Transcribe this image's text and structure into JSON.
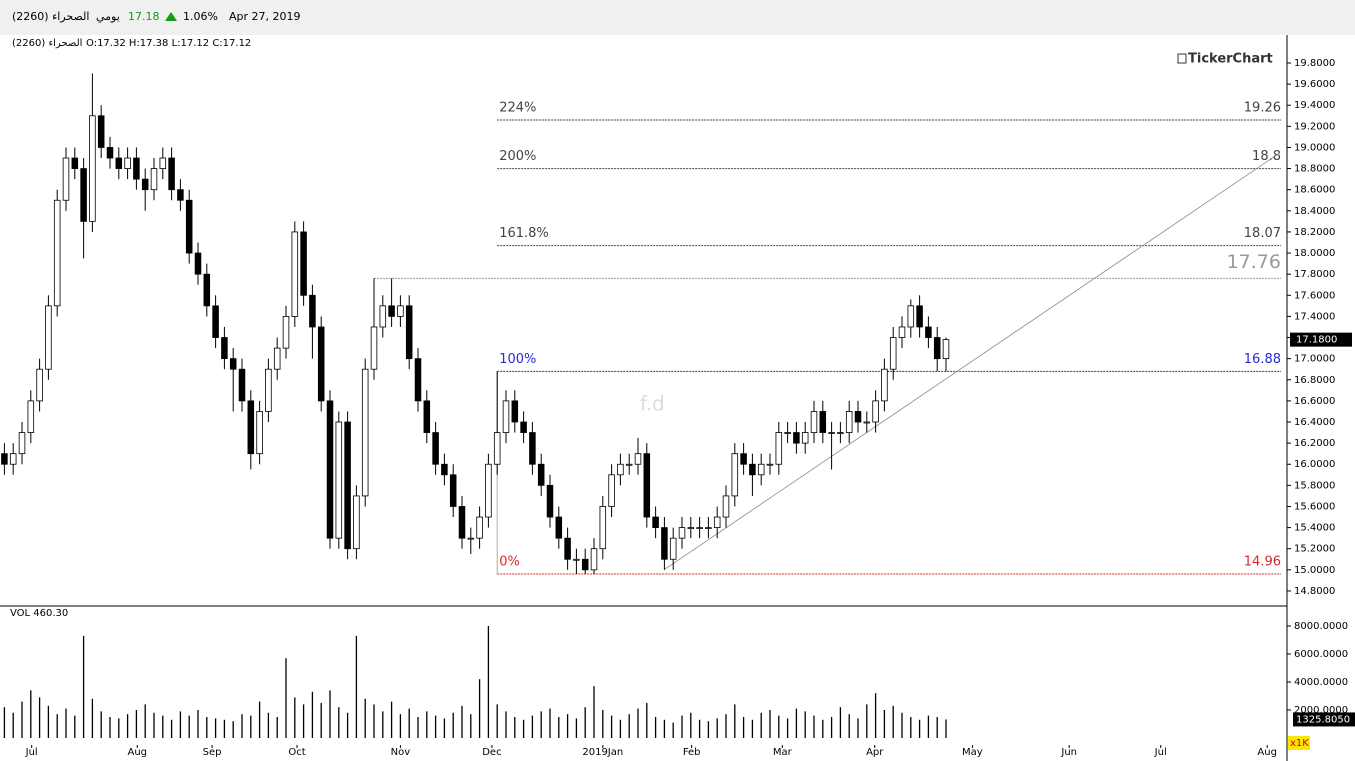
{
  "header": {
    "symbol": "الصحراء (2260)",
    "period": "يومي",
    "last": "17.18",
    "change": "1.06%",
    "date": "Apr 27, 2019"
  },
  "chart_data": {
    "type": "candlestick",
    "title": "الصحراء (2260)",
    "ohlc_text": "O:17.32 H:17.38 L:17.12 C:17.12",
    "brand": "TickerChart",
    "watermark": "f.d",
    "open": [
      16.1,
      16.0,
      16.1,
      16.3,
      16.6,
      16.9,
      17.5,
      18.5,
      18.9,
      18.8,
      18.3,
      19.3,
      19.0,
      18.9,
      18.8,
      18.9,
      18.7,
      18.6,
      18.8,
      18.9,
      18.6,
      18.5,
      18.0,
      17.8,
      17.5,
      17.2,
      17.0,
      16.9,
      16.6,
      16.1,
      16.5,
      16.9,
      17.1,
      17.4,
      18.2,
      17.6,
      17.3,
      16.6,
      15.3,
      16.4,
      15.2,
      15.7,
      16.9,
      17.3,
      17.5,
      17.4,
      17.5,
      17.0,
      16.6,
      16.3,
      16.0,
      15.9,
      15.6,
      15.3,
      15.3,
      15.5,
      16.0,
      16.3,
      16.6,
      16.4,
      16.3,
      16.0,
      15.8,
      15.5,
      15.3,
      15.1,
      15.1,
      15.0,
      15.2,
      15.6,
      15.9,
      16.0,
      16.0,
      16.1,
      15.5,
      15.4,
      15.1,
      15.3,
      15.4,
      15.4,
      15.4,
      15.4,
      15.5,
      15.7,
      16.1,
      16.0,
      15.9,
      16.0,
      16.0,
      16.3,
      16.3,
      16.2,
      16.3,
      16.5,
      16.3,
      16.3,
      16.3,
      16.5,
      16.4,
      16.4,
      16.6,
      16.9,
      17.2,
      17.3,
      17.5,
      17.3,
      17.2,
      17.0
    ],
    "high": [
      16.2,
      16.2,
      16.4,
      16.7,
      17.0,
      17.6,
      18.6,
      19.0,
      19.0,
      18.9,
      19.7,
      19.4,
      19.1,
      19.0,
      19.0,
      19.0,
      18.8,
      18.9,
      19.0,
      19.0,
      18.7,
      18.6,
      18.1,
      17.9,
      17.6,
      17.3,
      17.1,
      17.0,
      16.7,
      16.6,
      17.0,
      17.2,
      17.5,
      18.3,
      18.3,
      17.7,
      17.4,
      16.7,
      16.5,
      16.5,
      15.8,
      17.0,
      17.76,
      17.6,
      17.76,
      17.6,
      17.6,
      17.1,
      16.7,
      16.4,
      16.1,
      16.0,
      15.7,
      15.4,
      15.6,
      16.1,
      16.88,
      16.7,
      16.7,
      16.5,
      16.4,
      16.1,
      15.9,
      15.6,
      15.4,
      15.2,
      15.2,
      15.3,
      15.7,
      16.0,
      16.1,
      16.1,
      16.25,
      16.2,
      15.6,
      15.5,
      15.4,
      15.5,
      15.5,
      15.5,
      15.5,
      15.6,
      15.8,
      16.2,
      16.2,
      16.1,
      16.1,
      16.1,
      16.4,
      16.4,
      16.4,
      16.4,
      16.6,
      16.6,
      16.4,
      16.4,
      16.6,
      16.6,
      16.5,
      16.7,
      17.0,
      17.3,
      17.4,
      17.56,
      17.6,
      17.4,
      17.3,
      17.2
    ],
    "low": [
      15.9,
      15.9,
      16.0,
      16.2,
      16.5,
      16.8,
      17.4,
      18.4,
      18.7,
      17.95,
      18.2,
      18.9,
      18.8,
      18.7,
      18.7,
      18.6,
      18.4,
      18.5,
      18.7,
      18.5,
      18.4,
      17.9,
      17.7,
      17.4,
      17.1,
      16.9,
      16.5,
      16.5,
      15.95,
      16.0,
      16.4,
      16.8,
      17.0,
      17.3,
      17.5,
      17.0,
      16.5,
      15.2,
      15.2,
      15.1,
      15.1,
      15.6,
      16.8,
      17.2,
      17.3,
      17.3,
      16.9,
      16.5,
      16.2,
      15.9,
      15.8,
      15.5,
      15.2,
      15.15,
      15.2,
      15.4,
      15.9,
      16.2,
      16.3,
      16.2,
      15.9,
      15.7,
      15.4,
      15.2,
      15.0,
      14.96,
      14.96,
      14.96,
      15.1,
      15.5,
      15.8,
      15.9,
      15.9,
      15.4,
      15.3,
      15.0,
      15.0,
      15.2,
      15.3,
      15.3,
      15.3,
      15.3,
      15.4,
      15.6,
      15.9,
      15.7,
      15.8,
      15.9,
      15.9,
      16.2,
      16.1,
      16.1,
      16.2,
      16.2,
      15.95,
      16.2,
      16.2,
      16.3,
      16.3,
      16.3,
      16.5,
      16.8,
      17.1,
      17.2,
      17.2,
      17.1,
      16.88,
      16.88
    ],
    "close": [
      16.0,
      16.1,
      16.3,
      16.6,
      16.9,
      17.5,
      18.5,
      18.9,
      18.8,
      18.3,
      19.3,
      19.0,
      18.9,
      18.8,
      18.9,
      18.7,
      18.6,
      18.8,
      18.9,
      18.6,
      18.5,
      18.0,
      17.8,
      17.5,
      17.2,
      17.0,
      16.9,
      16.6,
      16.1,
      16.5,
      16.9,
      17.1,
      17.4,
      18.2,
      17.6,
      17.3,
      16.6,
      15.3,
      16.4,
      15.2,
      15.7,
      16.9,
      17.3,
      17.5,
      17.4,
      17.5,
      17.0,
      16.6,
      16.3,
      16.0,
      15.9,
      15.6,
      15.3,
      15.3,
      15.5,
      16.0,
      16.3,
      16.6,
      16.4,
      16.3,
      16.0,
      15.8,
      15.5,
      15.3,
      15.1,
      15.1,
      15.0,
      15.2,
      15.6,
      15.9,
      16.0,
      16.0,
      16.1,
      15.5,
      15.4,
      15.1,
      15.3,
      15.4,
      15.4,
      15.4,
      15.4,
      15.5,
      15.7,
      16.1,
      16.0,
      15.9,
      16.0,
      16.0,
      16.3,
      16.3,
      16.2,
      16.3,
      16.5,
      16.3,
      16.3,
      16.3,
      16.5,
      16.4,
      16.4,
      16.6,
      16.9,
      17.2,
      17.3,
      17.5,
      17.3,
      17.2,
      17.0,
      17.18
    ],
    "volume": [
      2200,
      1800,
      2600,
      3400,
      2900,
      2300,
      1700,
      2100,
      1600,
      7300,
      2800,
      1900,
      1500,
      1400,
      1700,
      2000,
      2400,
      1800,
      1600,
      1300,
      1900,
      1600,
      2000,
      1500,
      1400,
      1300,
      1200,
      1700,
      1600,
      2600,
      1800,
      1500,
      5700,
      2900,
      2400,
      3300,
      2500,
      3400,
      2200,
      1800,
      7300,
      2800,
      2400,
      1900,
      2600,
      1700,
      2100,
      1500,
      1900,
      1600,
      1400,
      1800,
      2300,
      1700,
      4200,
      8000,
      2400,
      1900,
      1500,
      1300,
      1600,
      1900,
      2100,
      1500,
      1700,
      1400,
      2200,
      3700,
      2000,
      1600,
      1300,
      1700,
      2100,
      2500,
      1500,
      1300,
      1100,
      1600,
      1800,
      1300,
      1200,
      1400,
      1700,
      2400,
      1500,
      1300,
      1800,
      2000,
      1600,
      1400,
      2100,
      1900,
      1600,
      1300,
      1500,
      2200,
      1700,
      1400,
      2400,
      3200,
      2000,
      2300,
      1800,
      1500,
      1300,
      1600,
      1500,
      1325.805
    ],
    "up_color": "#ffffff",
    "down_color": "#000000",
    "volume_label": "VOL  460.30",
    "volume_unit": "x1K",
    "last_price": {
      "value": 17.18,
      "label": "17.1800"
    },
    "last_volume": {
      "value": 1325.805,
      "label": "1325.8050"
    },
    "xlim": [
      -0.5,
      145.75
    ],
    "xticks": [
      {
        "value": 3.1,
        "label": "Jul"
      },
      {
        "value": 15.1,
        "label": "Aug"
      },
      {
        "value": 23.6,
        "label": "Sep"
      },
      {
        "value": 33.25,
        "label": "Oct"
      },
      {
        "value": 45,
        "label": "Nov"
      },
      {
        "value": 55.4,
        "label": "Dec"
      },
      {
        "value": 68,
        "label": "2019Jan"
      },
      {
        "value": 78.1,
        "label": "Feb"
      },
      {
        "value": 88.4,
        "label": "Mar"
      },
      {
        "value": 98.9,
        "label": "Apr"
      },
      {
        "value": 110,
        "label": "May"
      },
      {
        "value": 121,
        "label": "Jun"
      },
      {
        "value": 131.4,
        "label": "Jul"
      },
      {
        "value": 143.5,
        "label": "Aug"
      }
    ],
    "ylim": [
      14.667,
      20.065
    ],
    "yticks": [
      {
        "value": 14.8,
        "label": "14.8000"
      },
      {
        "value": 15.0,
        "label": "15.0000"
      },
      {
        "value": 15.2,
        "label": "15.2000"
      },
      {
        "value": 15.4,
        "label": "15.4000"
      },
      {
        "value": 15.6,
        "label": "15.6000"
      },
      {
        "value": 15.8,
        "label": "15.8000"
      },
      {
        "value": 16.0,
        "label": "16.0000"
      },
      {
        "value": 16.2,
        "label": "16.2000"
      },
      {
        "value": 16.4,
        "label": "16.4000"
      },
      {
        "value": 16.6,
        "label": "16.6000"
      },
      {
        "value": 16.8,
        "label": "16.8000"
      },
      {
        "value": 17.0,
        "label": "17.0000"
      },
      {
        "value": 17.2,
        "label": "17.2000"
      },
      {
        "value": 17.4,
        "label": "17.4000"
      },
      {
        "value": 17.6,
        "label": "17.6000"
      },
      {
        "value": 17.8,
        "label": "17.8000"
      },
      {
        "value": 18.0,
        "label": "18.0000"
      },
      {
        "value": 18.2,
        "label": "18.2000"
      },
      {
        "value": 18.4,
        "label": "18.4000"
      },
      {
        "value": 18.6,
        "label": "18.6000"
      },
      {
        "value": 18.8,
        "label": "18.8000"
      },
      {
        "value": 19.0,
        "label": "19.0000"
      },
      {
        "value": 19.2,
        "label": "19.2000"
      },
      {
        "value": 19.4,
        "label": "19.4000"
      },
      {
        "value": 19.6,
        "label": "19.6000"
      },
      {
        "value": 19.8,
        "label": "19.8000"
      }
    ],
    "vol_ylim": [
      -500,
      9357
    ],
    "vol_yticks": [
      {
        "value": 2000,
        "label": "2000.0000"
      },
      {
        "value": 4000,
        "label": "4000.0000"
      },
      {
        "value": 6000,
        "label": "6000.0000"
      },
      {
        "value": 8000,
        "label": "8000.0000"
      }
    ],
    "fib_levels": [
      {
        "label": "224%",
        "value": 19.26,
        "color": "#444444"
      },
      {
        "label": "200%",
        "value": 18.8,
        "color": "#444444"
      },
      {
        "label": "161.8%",
        "value": 18.07,
        "color": "#444444"
      },
      {
        "label": "100%",
        "value": 16.88,
        "color": "#2a2ad6"
      },
      {
        "label": "0%",
        "value": 14.96,
        "color": "#d62a2a"
      }
    ],
    "resistance": {
      "value": 17.76,
      "color": "#999999"
    },
    "trendline": {
      "x": [
        74.95,
        144.95
      ],
      "y": [
        15.0,
        18.95
      ],
      "color": "#888888"
    }
  }
}
